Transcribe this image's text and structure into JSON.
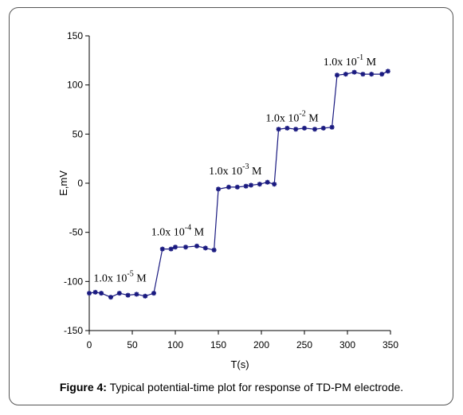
{
  "chart_data": {
    "type": "line",
    "xlabel": "T(s)",
    "ylabel": "E,mV",
    "xlim": [
      0,
      350
    ],
    "ylim": [
      -150,
      150
    ],
    "xticks": [
      0,
      50,
      100,
      150,
      200,
      250,
      300,
      350
    ],
    "yticks": [
      -150,
      -100,
      -50,
      0,
      50,
      100,
      150
    ],
    "grid": false,
    "color": "#1a1a80",
    "series": [
      {
        "x": [
          0,
          7,
          14,
          25,
          35,
          45,
          55,
          65,
          75,
          85,
          95,
          100,
          112,
          125,
          135,
          145,
          150,
          162,
          172,
          182,
          188,
          198,
          207,
          215,
          220,
          230,
          240,
          250,
          262,
          272,
          282,
          288,
          298,
          308,
          318,
          328,
          340,
          347
        ],
        "y": [
          -112,
          -111,
          -112,
          -116,
          -112,
          -114,
          -113,
          -115,
          -112,
          -67,
          -67,
          -65,
          -65,
          -64,
          -66,
          -68,
          -6,
          -4,
          -4,
          -3,
          -2,
          -1,
          1,
          -1,
          55,
          56,
          55,
          56,
          55,
          56,
          57,
          110,
          111,
          113,
          111,
          111,
          111,
          114
        ]
      }
    ],
    "annotations": [
      {
        "base": "1.0x 10",
        "exp": "-5",
        "unit": " M",
        "x": 5,
        "y": -100
      },
      {
        "base": "1.0x 10",
        "exp": "-4",
        "unit": " M",
        "x": 72,
        "y": -53
      },
      {
        "base": "1.0x 10",
        "exp": "-3",
        "unit": " M",
        "x": 139,
        "y": 9
      },
      {
        "base": "1.0x 10",
        "exp": "-2",
        "unit": " M",
        "x": 205,
        "y": 63
      },
      {
        "base": "1.0x 10",
        "exp": "-1",
        "unit": " M",
        "x": 272,
        "y": 120
      }
    ]
  },
  "caption": {
    "label": "Figure 4:",
    "text": " Typical potential-time plot for response of TD-PM electrode."
  }
}
